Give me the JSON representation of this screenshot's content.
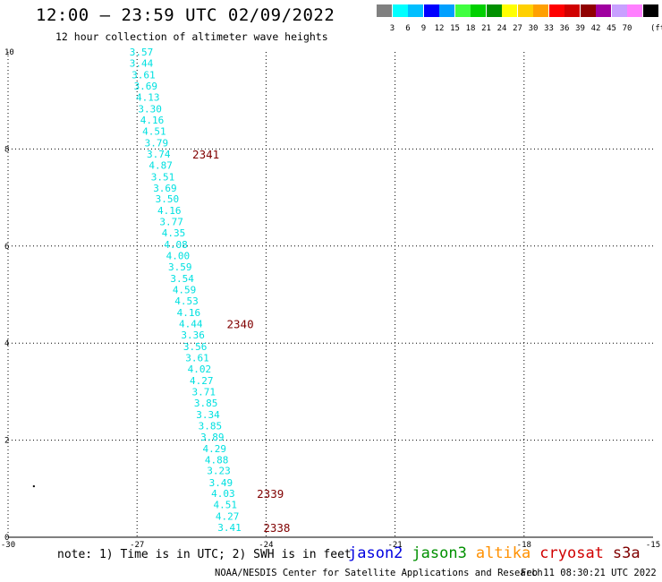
{
  "header": {
    "title": "12:00 – 23:59 UTC 02/09/2022",
    "subtitle": "12 hour collection of altimeter wave heights"
  },
  "color_scale": {
    "unit": "(ft)",
    "bins": [
      {
        "color": "#808080",
        "label": ""
      },
      {
        "color": "#00ffff",
        "label": "3"
      },
      {
        "color": "#00bfff",
        "label": "6"
      },
      {
        "color": "#0000ff",
        "label": "9"
      },
      {
        "color": "#00a0ff",
        "label": "12"
      },
      {
        "color": "#40ff40",
        "label": "15"
      },
      {
        "color": "#00d000",
        "label": "18"
      },
      {
        "color": "#009000",
        "label": "21"
      },
      {
        "color": "#ffff00",
        "label": "24"
      },
      {
        "color": "#ffd000",
        "label": "27"
      },
      {
        "color": "#ffa000",
        "label": "30"
      },
      {
        "color": "#ff0000",
        "label": "33"
      },
      {
        "color": "#d00000",
        "label": "36"
      },
      {
        "color": "#900000",
        "label": "39"
      },
      {
        "color": "#a000a0",
        "label": "42"
      },
      {
        "color": "#c8a0ff",
        "label": "45"
      },
      {
        "color": "#ff80ff",
        "label": "70"
      },
      {
        "color": "#000000",
        "label": ""
      }
    ]
  },
  "map": {
    "lon_range": [
      -30,
      -15
    ],
    "lat_range": [
      0,
      10
    ],
    "lon_ticks": [
      -30,
      -27,
      -24,
      -21,
      -18,
      -15
    ],
    "lat_ticks": [
      0,
      2,
      4,
      6,
      8,
      10
    ],
    "lon_tick_labels": [
      "-30",
      "-27",
      "-24",
      "-21",
      "-18",
      "-15"
    ],
    "lat_tick_labels": [
      "0",
      "2",
      "4",
      "6",
      "8",
      "10"
    ],
    "track_color": "#00e0e0",
    "time_color": "#800000",
    "wave_heights": [
      {
        "lon": -26.9,
        "lat": 10.0,
        "value": "3.57"
      },
      {
        "lon": -26.9,
        "lat": 9.77,
        "value": "3.44"
      },
      {
        "lon": -26.85,
        "lat": 9.53,
        "value": "3.61"
      },
      {
        "lon": -26.8,
        "lat": 9.3,
        "value": "3.69"
      },
      {
        "lon": -26.75,
        "lat": 9.07,
        "value": "4.13"
      },
      {
        "lon": -26.7,
        "lat": 8.83,
        "value": "3.30"
      },
      {
        "lon": -26.65,
        "lat": 8.6,
        "value": "4.16"
      },
      {
        "lon": -26.6,
        "lat": 8.37,
        "value": "4.51"
      },
      {
        "lon": -26.55,
        "lat": 8.13,
        "value": "3.79"
      },
      {
        "lon": -26.5,
        "lat": 7.9,
        "value": "3.74"
      },
      {
        "lon": -26.45,
        "lat": 7.67,
        "value": "4.87"
      },
      {
        "lon": -26.4,
        "lat": 7.43,
        "value": "3.51"
      },
      {
        "lon": -26.35,
        "lat": 7.2,
        "value": "3.69"
      },
      {
        "lon": -26.3,
        "lat": 6.97,
        "value": "3.50"
      },
      {
        "lon": -26.25,
        "lat": 6.73,
        "value": "4.16"
      },
      {
        "lon": -26.2,
        "lat": 6.5,
        "value": "3.77"
      },
      {
        "lon": -26.15,
        "lat": 6.27,
        "value": "4.35"
      },
      {
        "lon": -26.1,
        "lat": 6.03,
        "value": "4.08"
      },
      {
        "lon": -26.05,
        "lat": 5.8,
        "value": "4.00"
      },
      {
        "lon": -26.0,
        "lat": 5.57,
        "value": "3.59"
      },
      {
        "lon": -25.95,
        "lat": 5.33,
        "value": "3.54"
      },
      {
        "lon": -25.9,
        "lat": 5.1,
        "value": "4.59"
      },
      {
        "lon": -25.85,
        "lat": 4.87,
        "value": "4.53"
      },
      {
        "lon": -25.8,
        "lat": 4.63,
        "value": "4.16"
      },
      {
        "lon": -25.75,
        "lat": 4.4,
        "value": "4.44"
      },
      {
        "lon": -25.7,
        "lat": 4.17,
        "value": "3.36"
      },
      {
        "lon": -25.65,
        "lat": 3.93,
        "value": "3.56"
      },
      {
        "lon": -25.6,
        "lat": 3.7,
        "value": "3.61"
      },
      {
        "lon": -25.55,
        "lat": 3.47,
        "value": "4.02"
      },
      {
        "lon": -25.5,
        "lat": 3.23,
        "value": "4.27"
      },
      {
        "lon": -25.45,
        "lat": 3.0,
        "value": "3.71"
      },
      {
        "lon": -25.4,
        "lat": 2.77,
        "value": "3.85"
      },
      {
        "lon": -25.35,
        "lat": 2.53,
        "value": "3.34"
      },
      {
        "lon": -25.3,
        "lat": 2.3,
        "value": "3.85"
      },
      {
        "lon": -25.25,
        "lat": 2.07,
        "value": "3.89"
      },
      {
        "lon": -25.2,
        "lat": 1.83,
        "value": "4.29"
      },
      {
        "lon": -25.15,
        "lat": 1.6,
        "value": "4.88"
      },
      {
        "lon": -25.1,
        "lat": 1.37,
        "value": "3.23"
      },
      {
        "lon": -25.05,
        "lat": 1.13,
        "value": "3.49"
      },
      {
        "lon": -25.0,
        "lat": 0.9,
        "value": "4.03"
      },
      {
        "lon": -24.95,
        "lat": 0.67,
        "value": "4.51"
      },
      {
        "lon": -24.9,
        "lat": 0.43,
        "value": "4.27"
      },
      {
        "lon": -24.85,
        "lat": 0.2,
        "value": "3.41"
      }
    ],
    "time_labels": [
      {
        "lon": -25.4,
        "lat": 7.9,
        "value": "2341"
      },
      {
        "lon": -24.6,
        "lat": 4.4,
        "value": "2340"
      },
      {
        "lon": -23.9,
        "lat": 0.9,
        "value": "2339"
      },
      {
        "lon": -23.75,
        "lat": 0.2,
        "value": "2338"
      }
    ],
    "markers": [
      {
        "lon": -29.4,
        "lat": 1.05
      }
    ]
  },
  "footer": {
    "note": "note: 1) Time is in UTC; 2) SWH is in feet",
    "missions": [
      {
        "name": "jason2",
        "color": "#0000e0"
      },
      {
        "name": "jason3",
        "color": "#009000"
      },
      {
        "name": "altika",
        "color": "#ff9000"
      },
      {
        "name": "cryosat",
        "color": "#d00000"
      },
      {
        "name": "s3a",
        "color": "#800000"
      }
    ],
    "credit": "NOAA/NESDIS Center for Satellite Applications and Research",
    "timestamp": "Feb 11 08:30:21 UTC 2022"
  }
}
